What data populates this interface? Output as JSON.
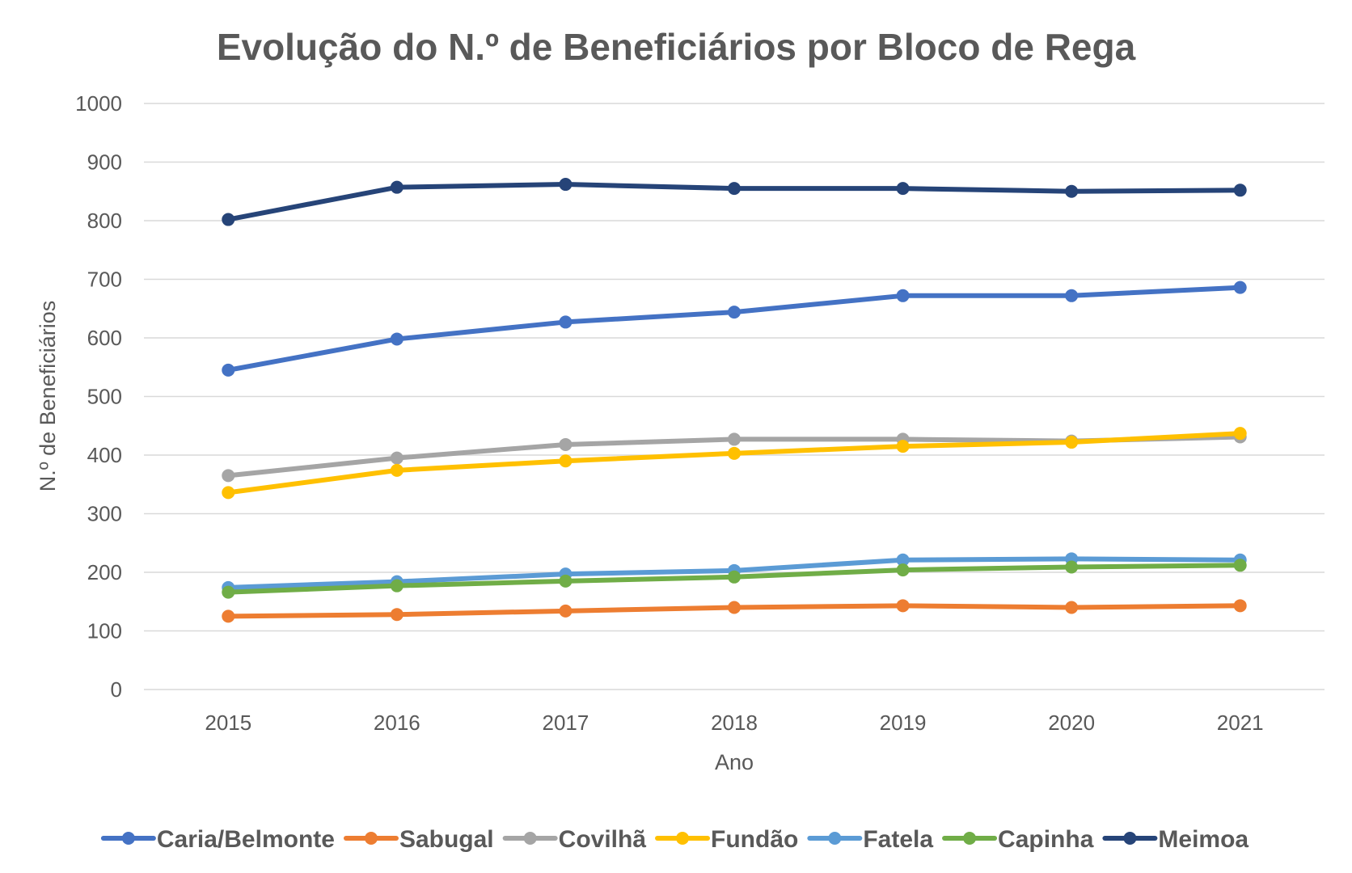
{
  "chart_data": {
    "type": "line",
    "title": "Evolução do N.º de Beneficiários por Bloco de Rega",
    "xlabel": "Ano",
    "ylabel": "N.º de Beneficiários",
    "categories": [
      "2015",
      "2016",
      "2017",
      "2018",
      "2019",
      "2020",
      "2021"
    ],
    "ylim": [
      0,
      1000
    ],
    "yticks": [
      0,
      100,
      200,
      300,
      400,
      500,
      600,
      700,
      800,
      900,
      1000
    ],
    "grid": true,
    "legend_position": "bottom",
    "series": [
      {
        "name": "Caria/Belmonte",
        "color": "#4472C4",
        "values": [
          545,
          598,
          627,
          644,
          672,
          672,
          686
        ]
      },
      {
        "name": "Sabugal",
        "color": "#ED7D31",
        "values": [
          125,
          128,
          134,
          140,
          143,
          140,
          143
        ]
      },
      {
        "name": "Covilhã",
        "color": "#A5A5A5",
        "values": [
          365,
          395,
          418,
          427,
          427,
          424,
          431
        ]
      },
      {
        "name": "Fundão",
        "color": "#FFC000",
        "values": [
          336,
          374,
          390,
          403,
          415,
          422,
          437
        ]
      },
      {
        "name": "Fatela",
        "color": "#5B9BD5",
        "values": [
          174,
          184,
          197,
          203,
          221,
          223,
          221
        ]
      },
      {
        "name": "Capinha",
        "color": "#70AD47",
        "values": [
          166,
          177,
          185,
          192,
          204,
          209,
          212
        ]
      },
      {
        "name": "Meimoa",
        "color": "#264478",
        "values": [
          802,
          857,
          862,
          855,
          855,
          850,
          852
        ]
      }
    ]
  }
}
